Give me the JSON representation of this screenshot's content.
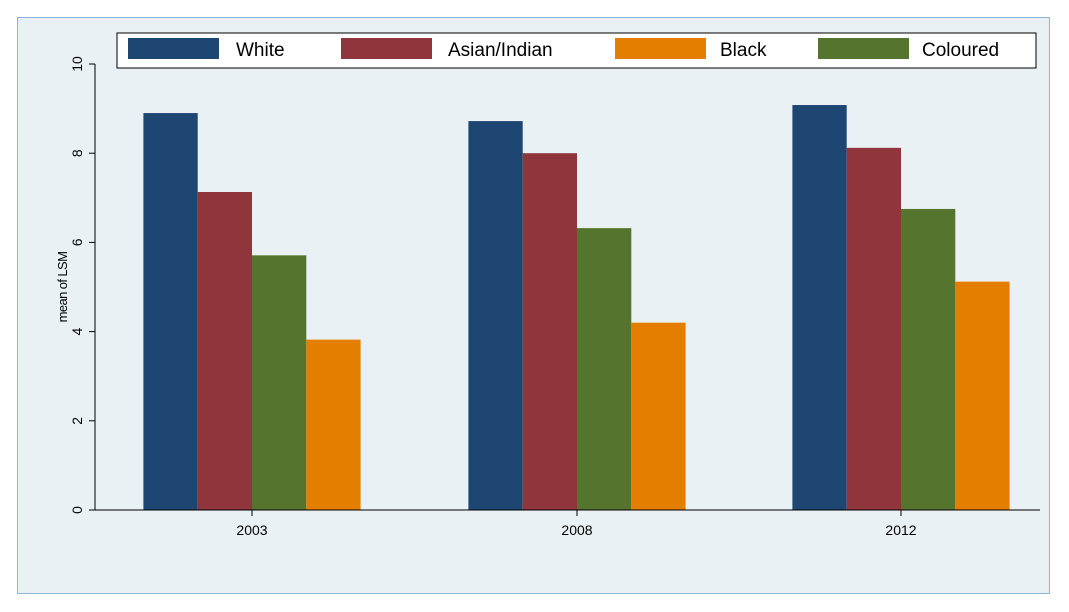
{
  "chart_data": {
    "type": "bar",
    "categories": [
      "2003",
      "2008",
      "2012"
    ],
    "series": [
      {
        "name": "White",
        "color": "#1d4772",
        "values": [
          8.9,
          8.72,
          9.08
        ]
      },
      {
        "name": "Asian/Indian",
        "color": "#90353b",
        "values": [
          7.13,
          8.0,
          8.12
        ]
      },
      {
        "name": "Coloured",
        "color": "#55752f",
        "values": [
          5.71,
          6.32,
          6.75
        ]
      },
      {
        "name": "Black",
        "color": "#e37e00",
        "values": [
          3.82,
          4.2,
          5.12
        ]
      }
    ],
    "legend_order": [
      "White",
      "Asian/Indian",
      "Black",
      "Coloured"
    ],
    "ylabel": "mean of LSM",
    "xlabel": "",
    "ylim": [
      0,
      10
    ],
    "yticks": [
      0,
      2,
      4,
      6,
      8,
      10
    ],
    "grid": false,
    "legend_position": "top"
  }
}
